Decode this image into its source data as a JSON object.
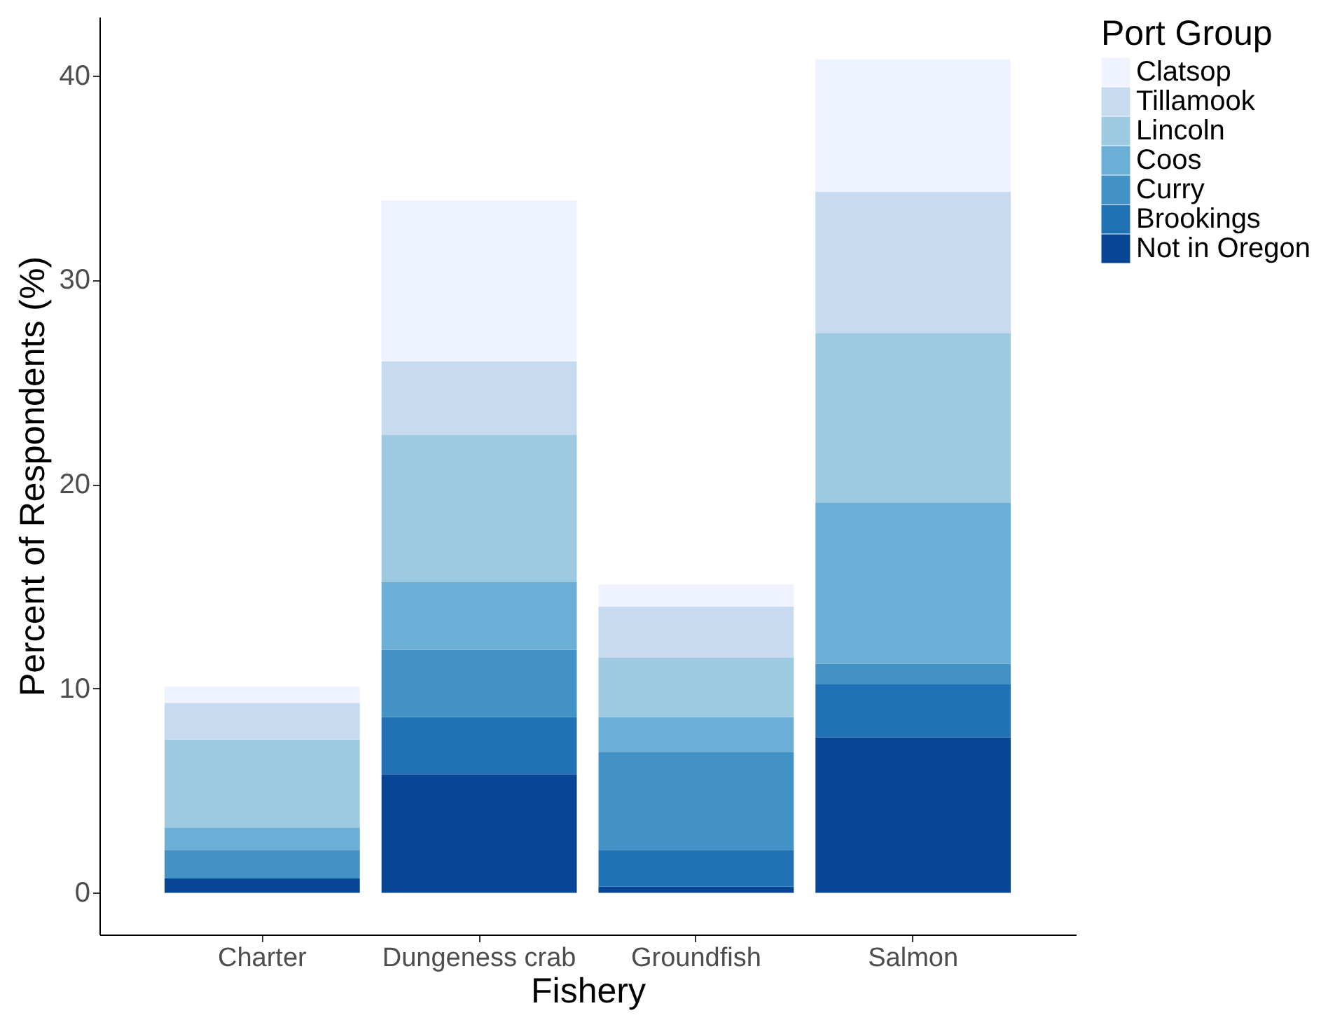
{
  "chart_data": {
    "type": "bar",
    "stacked": true,
    "xlabel": "Fishery",
    "ylabel": "Percent of Respondents (%)",
    "legend_title": "Port Group",
    "categories": [
      "Charter",
      "Dungeness crab",
      "Groundfish",
      "Salmon"
    ],
    "series": [
      {
        "name": "Not in Oregon",
        "color": "#084594",
        "values": [
          0.7,
          5.8,
          0.3,
          7.6
        ]
      },
      {
        "name": "Brookings",
        "color": "#2171b5",
        "values": [
          0,
          2.8,
          1.8,
          2.6
        ]
      },
      {
        "name": "Curry",
        "color": "#4292c6",
        "values": [
          1.4,
          3.3,
          4.8,
          1.0
        ]
      },
      {
        "name": "Coos",
        "color": "#6baed6",
        "values": [
          1.1,
          3.3,
          1.7,
          7.9
        ]
      },
      {
        "name": "Lincoln",
        "color": "#9ecae1",
        "values": [
          4.3,
          7.2,
          2.9,
          8.3
        ]
      },
      {
        "name": "Tillamook",
        "color": "#c6dbef",
        "values": [
          1.8,
          3.6,
          2.5,
          6.9
        ]
      },
      {
        "name": "Clatsop",
        "color": "#eff3ff",
        "values": [
          0.8,
          7.9,
          1.1,
          6.5
        ]
      }
    ],
    "ylim": [
      -2.04,
      42.87
    ],
    "yticks": [
      0,
      10,
      20,
      30,
      40
    ],
    "grid": false,
    "legend": "right"
  }
}
